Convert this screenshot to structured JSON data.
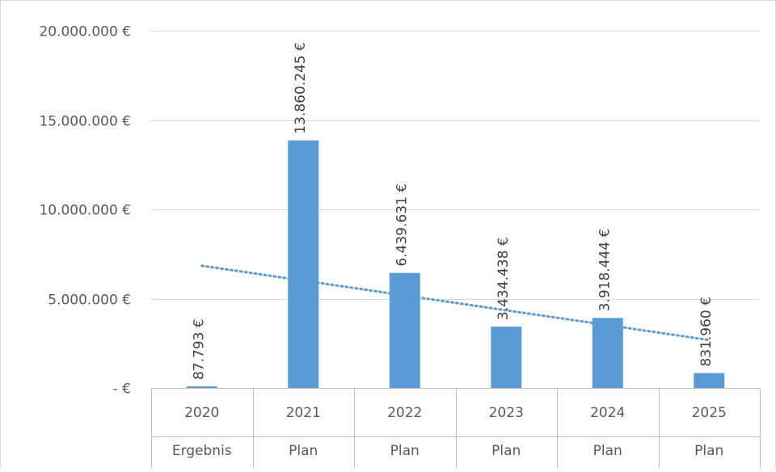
{
  "chart_data": {
    "type": "bar",
    "title": "",
    "categories": [
      "2020",
      "2021",
      "2022",
      "2023",
      "2024",
      "2025"
    ],
    "subcategories": [
      "Ergebnis",
      "Plan",
      "Plan",
      "Plan",
      "Plan",
      "Plan"
    ],
    "series": [
      {
        "values": [
          87793,
          13860245,
          6439631,
          3434438,
          3918444,
          831960
        ],
        "data_labels": [
          "87.793 €",
          "13.860.245 €",
          "6.439.631 €",
          "3.434.438 €",
          "3.918.444 €",
          "831.960 €"
        ],
        "color": "#5b9bd5"
      }
    ],
    "trendline": {
      "type": "linear",
      "style": "dotted",
      "color": "#5b9bd5"
    },
    "y_ticks": [
      0,
      5000000,
      10000000,
      15000000,
      20000000
    ],
    "y_tick_labels": [
      "-  €",
      "5.000.000 €",
      "10.000.000 €",
      "15.000.000 €",
      "20.000.000 €"
    ],
    "ylim": [
      0,
      20000000
    ],
    "grid": true,
    "legend": "none",
    "xlabel": "",
    "ylabel": ""
  }
}
